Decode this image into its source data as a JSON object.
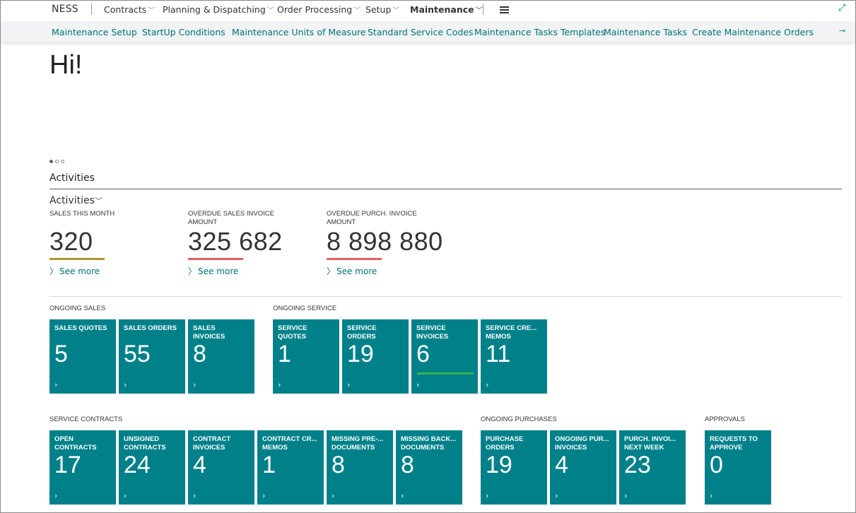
{
  "nav": {
    "brand": "NESS",
    "menus": [
      "Contracts",
      "Planning & Dispatching",
      "Order Processing",
      "Setup",
      "Maintenance"
    ],
    "chevron": "﹀"
  },
  "subnav": {
    "links": [
      "Maintenance Setup",
      "StartUp Conditions",
      "Maintenance Units of Measure",
      "Standard Service Codes",
      "Maintenance Tasks Templates",
      "Maintenance Tasks",
      "Create Maintenance Orders"
    ]
  },
  "greeting": "Hi!",
  "section_title": "Activities",
  "group_title": "Activities",
  "kpis": [
    {
      "label": "SALES THIS MONTH",
      "value": "320",
      "more": "See more",
      "bar_color": "#a89a2a"
    },
    {
      "label": "OVERDUE SALES INVOICE AMOUNT",
      "value": "325 682",
      "more": "See more",
      "bar_color": "#e8605e"
    },
    {
      "label": "OVERDUE PURCH. INVOICE AMOUNT",
      "value": "8 898 880",
      "more": "See more",
      "bar_color": "#e8605e"
    }
  ],
  "cues": {
    "ongoing_sales": {
      "title": "ONGOING SALES",
      "tiles": [
        {
          "label": "SALES QUOTES",
          "value": "5"
        },
        {
          "label": "SALES ORDERS",
          "value": "55"
        },
        {
          "label": "SALES INVOICES",
          "value": "8"
        }
      ]
    },
    "ongoing_service": {
      "title": "ONGOING SERVICE",
      "tiles": [
        {
          "label": "SERVICE QUOTES",
          "value": "1"
        },
        {
          "label": "SERVICE ORDERS",
          "value": "19"
        },
        {
          "label": "SERVICE INVOICES",
          "value": "6"
        },
        {
          "label": "SERVICE CRE... MEMOS",
          "value": "11"
        }
      ]
    },
    "service_contracts": {
      "title": "SERVICE CONTRACTS",
      "tiles": [
        {
          "label": "OPEN CONTRACTS",
          "value": "17"
        },
        {
          "label": "UNSIGNED CONTRACTS",
          "value": "24"
        },
        {
          "label": "CONTRACT INVOICES",
          "value": "4"
        },
        {
          "label": "CONTRACT CR... MEMOS",
          "value": "1"
        },
        {
          "label": "MISSING PRE-... DOCUMENTS",
          "value": "8"
        },
        {
          "label": "MISSING BACK... DOCUMENTS",
          "value": "8"
        }
      ]
    },
    "ongoing_purchases": {
      "title": "ONGOING PURCHASES",
      "tiles": [
        {
          "label": "PURCHASE ORDERS",
          "value": "19"
        },
        {
          "label": "ONGOING PUR... INVOICES",
          "value": "4"
        },
        {
          "label": "PURCH. INVOI... NEXT WEEK",
          "value": "23"
        }
      ]
    },
    "approvals": {
      "title": "APPROVALS",
      "tiles": [
        {
          "label": "REQUESTS TO APPROVE",
          "value": "0"
        }
      ]
    }
  },
  "tile_arrow": "›",
  "more_arrow": "〉",
  "icons": {
    "expand": "expand-icon",
    "pin": "pin-icon",
    "menu": "hamburger-icon"
  },
  "colors": {
    "tile": "#00818a",
    "link": "#00737a",
    "good_bar": "#3bb34a"
  }
}
